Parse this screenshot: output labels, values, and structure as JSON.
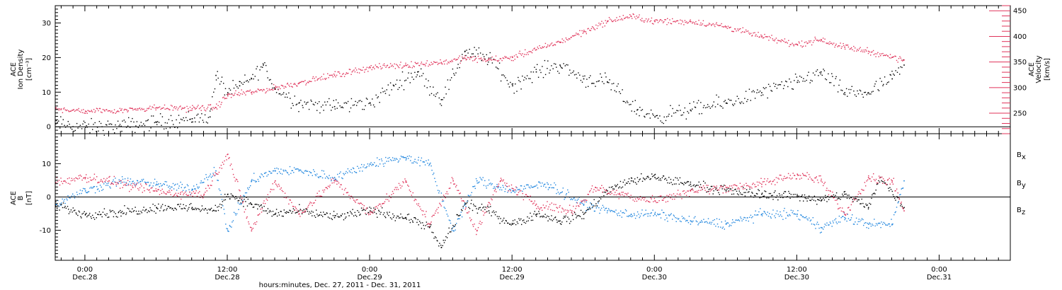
{
  "colors": {
    "black": "#000000",
    "red": "#e0335a",
    "blue": "#1f85de",
    "frame": "#000000",
    "right_axis": "#e0335a"
  },
  "chart_data": [
    {
      "type": "scatter",
      "time_range": [
        "2011-12-27 21:30",
        "2011-12-31 06:00"
      ],
      "left_ylabel": [
        "ACE",
        "Ion Density",
        "[cm⁻³]"
      ],
      "right_ylabel": [
        "ACE",
        "Velocity",
        "[km/s]"
      ],
      "ylim_left": [
        -2,
        35
      ],
      "ylim_right": [
        210,
        460
      ],
      "left_ticks": [
        0,
        10,
        20,
        30
      ],
      "right_ticks": [
        250,
        300,
        350,
        400,
        450
      ],
      "grid": false,
      "series": [
        {
          "axis": "left",
          "color": "#000000",
          "points": [
            [
              "2011-12-27 21:30",
              1.0
            ],
            [
              "2011-12-28 00:00",
              0.0
            ],
            [
              "2011-12-28 03:00",
              0.3
            ],
            [
              "2011-12-28 06:00",
              1.5
            ],
            [
              "2011-12-28 09:00",
              2.5
            ],
            [
              "2011-12-28 10:30",
              3.0
            ],
            [
              "2011-12-28 11:00",
              15.0
            ],
            [
              "2011-12-28 12:00",
              10.0
            ],
            [
              "2011-12-28 13:00",
              12.0
            ],
            [
              "2011-12-28 14:00",
              14.0
            ],
            [
              "2011-12-28 15:00",
              18.0
            ],
            [
              "2011-12-28 16:00",
              11.0
            ],
            [
              "2011-12-28 18:00",
              7.0
            ],
            [
              "2011-12-28 21:00",
              6.0
            ],
            [
              "2011-12-29 00:00",
              7.0
            ],
            [
              "2011-12-29 02:00",
              12.0
            ],
            [
              "2011-12-29 04:00",
              16.0
            ],
            [
              "2011-12-29 06:00",
              8.0
            ],
            [
              "2011-12-29 08:00",
              22.0
            ],
            [
              "2011-12-29 10:00",
              20.0
            ],
            [
              "2011-12-29 12:00",
              12.0
            ],
            [
              "2011-12-29 14:00",
              16.0
            ],
            [
              "2011-12-29 16:00",
              18.0
            ],
            [
              "2011-12-29 18:00",
              14.0
            ],
            [
              "2011-12-29 20:00",
              13.0
            ],
            [
              "2011-12-29 22:30",
              5.0
            ],
            [
              "2011-12-30 00:00",
              3.0
            ],
            [
              "2011-12-30 03:00",
              5.0
            ],
            [
              "2011-12-30 06:00",
              7.0
            ],
            [
              "2011-12-30 09:00",
              10.0
            ],
            [
              "2011-12-30 12:00",
              13.0
            ],
            [
              "2011-12-30 14:00",
              16.0
            ],
            [
              "2011-12-30 16:00",
              10.0
            ],
            [
              "2011-12-30 18:00",
              10.0
            ],
            [
              "2011-12-30 20:00",
              14.0
            ],
            [
              "2011-12-30 21:00",
              18.0
            ]
          ]
        },
        {
          "axis": "right",
          "color": "#e0335a",
          "points": [
            [
              "2011-12-27 21:30",
              260
            ],
            [
              "2011-12-28 00:00",
              255
            ],
            [
              "2011-12-28 03:00",
              257
            ],
            [
              "2011-12-28 06:00",
              262
            ],
            [
              "2011-12-28 09:00",
              260
            ],
            [
              "2011-12-28 11:00",
              262
            ],
            [
              "2011-12-28 12:00",
              285
            ],
            [
              "2011-12-28 14:00",
              292
            ],
            [
              "2011-12-28 16:00",
              300
            ],
            [
              "2011-12-28 18:00",
              310
            ],
            [
              "2011-12-28 21:00",
              325
            ],
            [
              "2011-12-29 00:00",
              340
            ],
            [
              "2011-12-29 03:00",
              345
            ],
            [
              "2011-12-29 06:00",
              350
            ],
            [
              "2011-12-29 08:00",
              358
            ],
            [
              "2011-12-29 10:00",
              355
            ],
            [
              "2011-12-29 12:00",
              360
            ],
            [
              "2011-12-29 14:00",
              375
            ],
            [
              "2011-12-29 16:00",
              390
            ],
            [
              "2011-12-29 18:00",
              410
            ],
            [
              "2011-12-29 20:00",
              430
            ],
            [
              "2011-12-29 22:00",
              440
            ],
            [
              "2011-12-30 00:00",
              430
            ],
            [
              "2011-12-30 03:00",
              430
            ],
            [
              "2011-12-30 06:00",
              420
            ],
            [
              "2011-12-30 09:00",
              400
            ],
            [
              "2011-12-30 12:00",
              385
            ],
            [
              "2011-12-30 14:00",
              395
            ],
            [
              "2011-12-30 16:00",
              380
            ],
            [
              "2011-12-30 18:00",
              372
            ],
            [
              "2011-12-30 20:00",
              360
            ],
            [
              "2011-12-30 21:00",
              355
            ]
          ]
        }
      ]
    },
    {
      "type": "scatter",
      "time_range": [
        "2011-12-27 21:30",
        "2011-12-31 06:00"
      ],
      "ylabel": [
        "ACE",
        "B",
        "[nT]"
      ],
      "ylim": [
        -19,
        19
      ],
      "yticks": [
        -10,
        0,
        10
      ],
      "grid": false,
      "legend_position": "right",
      "series": [
        {
          "name": "Bx",
          "color": "#000000",
          "points": [
            [
              "2011-12-27 21:30",
              -2.5
            ],
            [
              "2011-12-28 00:00",
              -5.0
            ],
            [
              "2011-12-28 03:00",
              -4.5
            ],
            [
              "2011-12-28 06:00",
              -3.0
            ],
            [
              "2011-12-28 09:00",
              -3.0
            ],
            [
              "2011-12-28 11:00",
              -4.0
            ],
            [
              "2011-12-28 12:00",
              1.0
            ],
            [
              "2011-12-28 14:00",
              -2.0
            ],
            [
              "2011-12-28 16:00",
              -5.0
            ],
            [
              "2011-12-28 18:00",
              -4.0
            ],
            [
              "2011-12-28 21:00",
              -6.0
            ],
            [
              "2011-12-29 00:00",
              -4.0
            ],
            [
              "2011-12-29 03:00",
              -6.0
            ],
            [
              "2011-12-29 05:00",
              -9.0
            ],
            [
              "2011-12-29 06:00",
              -15.0
            ],
            [
              "2011-12-29 08:00",
              -2.0
            ],
            [
              "2011-12-29 10:00",
              -4.0
            ],
            [
              "2011-12-29 12:00",
              -8.0
            ],
            [
              "2011-12-29 14:00",
              -5.0
            ],
            [
              "2011-12-29 16:00",
              -7.0
            ],
            [
              "2011-12-29 18:00",
              -5.0
            ],
            [
              "2011-12-29 20:00",
              2.0
            ],
            [
              "2011-12-29 22:00",
              5.0
            ],
            [
              "2011-12-30 00:00",
              6.0
            ],
            [
              "2011-12-30 03:00",
              4.0
            ],
            [
              "2011-12-30 06:00",
              2.0
            ],
            [
              "2011-12-30 09:00",
              1.0
            ],
            [
              "2011-12-30 12:00",
              0.5
            ],
            [
              "2011-12-30 14:00",
              -1.0
            ],
            [
              "2011-12-30 16:00",
              1.0
            ],
            [
              "2011-12-30 18:00",
              -3.0
            ],
            [
              "2011-12-30 19:00",
              6.0
            ],
            [
              "2011-12-30 21:00",
              -3.0
            ]
          ]
        },
        {
          "name": "By",
          "color": "#1f85de",
          "points": [
            [
              "2011-12-27 21:30",
              -2.0
            ],
            [
              "2011-12-28 00:00",
              2.0
            ],
            [
              "2011-12-28 03:00",
              5.0
            ],
            [
              "2011-12-28 06:00",
              4.0
            ],
            [
              "2011-12-28 09:00",
              2.5
            ],
            [
              "2011-12-28 11:00",
              8.0
            ],
            [
              "2011-12-28 12:00",
              -10.0
            ],
            [
              "2011-12-28 14:00",
              5.0
            ],
            [
              "2011-12-28 16:00",
              8.0
            ],
            [
              "2011-12-28 18:00",
              8.0
            ],
            [
              "2011-12-28 21:00",
              6.0
            ],
            [
              "2011-12-29 00:00",
              10.0
            ],
            [
              "2011-12-29 03:00",
              12.0
            ],
            [
              "2011-12-29 05:00",
              10.0
            ],
            [
              "2011-12-29 07:00",
              -10.0
            ],
            [
              "2011-12-29 09:00",
              5.0
            ],
            [
              "2011-12-29 12:00",
              2.0
            ],
            [
              "2011-12-29 15:00",
              4.0
            ],
            [
              "2011-12-29 18:00",
              -2.0
            ],
            [
              "2011-12-29 20:00",
              -4.0
            ],
            [
              "2011-12-29 22:00",
              -5.0
            ],
            [
              "2011-12-30 00:00",
              -5.0
            ],
            [
              "2011-12-30 03:00",
              -7.0
            ],
            [
              "2011-12-30 06:00",
              -8.0
            ],
            [
              "2011-12-30 09:00",
              -5.0
            ],
            [
              "2011-12-30 12:00",
              -5.0
            ],
            [
              "2011-12-30 14:00",
              -9.0
            ],
            [
              "2011-12-30 16:00",
              -6.0
            ],
            [
              "2011-12-30 18:00",
              -8.0
            ],
            [
              "2011-12-30 20:00",
              -8.0
            ],
            [
              "2011-12-30 21:00",
              5.0
            ]
          ]
        },
        {
          "name": "Bz",
          "color": "#e0335a",
          "points": [
            [
              "2011-12-27 21:30",
              4.5
            ],
            [
              "2011-12-28 00:00",
              6.0
            ],
            [
              "2011-12-28 02:00",
              5.0
            ],
            [
              "2011-12-28 04:00",
              3.0
            ],
            [
              "2011-12-28 06:00",
              2.0
            ],
            [
              "2011-12-28 08:00",
              1.0
            ],
            [
              "2011-12-28 10:00",
              1.0
            ],
            [
              "2011-12-28 12:00",
              13.0
            ],
            [
              "2011-12-28 14:00",
              -10.0
            ],
            [
              "2011-12-28 16:00",
              5.0
            ],
            [
              "2011-12-28 18:00",
              -5.0
            ],
            [
              "2011-12-28 21:00",
              5.0
            ],
            [
              "2011-12-29 00:00",
              -5.0
            ],
            [
              "2011-12-29 03:00",
              5.0
            ],
            [
              "2011-12-29 05:00",
              -8.0
            ],
            [
              "2011-12-29 07:00",
              5.0
            ],
            [
              "2011-12-29 09:00",
              -10.0
            ],
            [
              "2011-12-29 11:00",
              5.0
            ],
            [
              "2011-12-29 14:00",
              -2.0
            ],
            [
              "2011-12-29 17:00",
              -4.0
            ],
            [
              "2011-12-29 19:00",
              3.0
            ],
            [
              "2011-12-29 21:00",
              1.0
            ],
            [
              "2011-12-30 00:00",
              -1.0
            ],
            [
              "2011-12-30 03:00",
              2.0
            ],
            [
              "2011-12-30 06:00",
              3.0
            ],
            [
              "2011-12-30 09:00",
              4.0
            ],
            [
              "2011-12-30 12:00",
              7.0
            ],
            [
              "2011-12-30 14:00",
              5.0
            ],
            [
              "2011-12-30 16:00",
              -5.0
            ],
            [
              "2011-12-30 18:00",
              6.0
            ],
            [
              "2011-12-30 20:00",
              5.0
            ],
            [
              "2011-12-30 21:00",
              -4.0
            ]
          ]
        }
      ]
    }
  ],
  "x_axis": {
    "ticks": [
      {
        "time": "2011-12-28 00:00",
        "hm": "0:00",
        "date": "Dec.28"
      },
      {
        "time": "2011-12-28 12:00",
        "hm": "12:00",
        "date": "Dec.28"
      },
      {
        "time": "2011-12-29 00:00",
        "hm": "0:00",
        "date": "Dec.29"
      },
      {
        "time": "2011-12-29 12:00",
        "hm": "12:00",
        "date": "Dec.29"
      },
      {
        "time": "2011-12-30 00:00",
        "hm": "0:00",
        "date": "Dec.30"
      },
      {
        "time": "2011-12-30 12:00",
        "hm": "12:00",
        "date": "Dec.30"
      },
      {
        "time": "2011-12-31 00:00",
        "hm": "0:00",
        "date": "Dec.31"
      }
    ],
    "label": "hours:minutes, Dec. 27, 2011 - Dec. 31, 2011"
  }
}
